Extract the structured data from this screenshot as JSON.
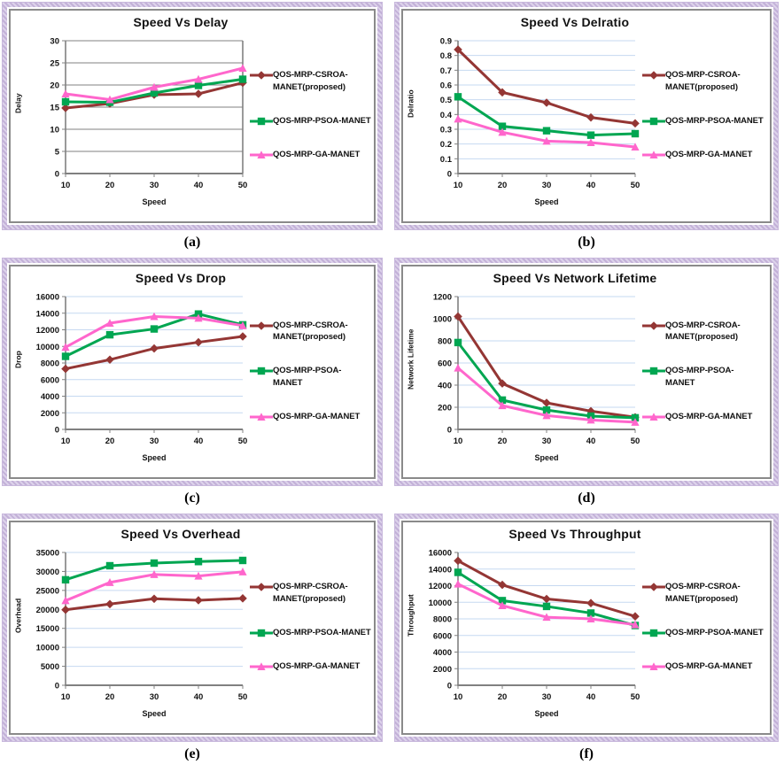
{
  "page": {
    "figure_labels": [
      "(a)",
      "(b)",
      "(c)",
      "(d)",
      "(e)",
      "(f)"
    ],
    "colors": {
      "panel_border_lavender": "#c8b4da",
      "panel_inner_border": "#8a8a8a",
      "axis": "#808080",
      "grid_light_blue": "#c6d9f1",
      "grid_gray": "#808080",
      "series_csroa": "#943634",
      "series_psoa": "#00a651",
      "series_ga": "#ff66cc",
      "text": "#111111"
    }
  },
  "chart_data": [
    {
      "type": "line",
      "title": "Speed Vs Delay",
      "xlabel": "Speed",
      "ylabel": "Delay",
      "x": [
        10,
        20,
        30,
        40,
        50
      ],
      "ylim": [
        0,
        30
      ],
      "ytick_step": 5,
      "grid_color": "#808080",
      "frame": true,
      "legend_position": "right",
      "series": [
        {
          "name": "QOS-MRP-CSROA-MANET(proposed)",
          "legend_lines": [
            "QOS-MRP-CSROA-",
            "MANET(proposed)"
          ],
          "marker": "diamond",
          "color": "#943634",
          "values": [
            14.8,
            15.8,
            17.8,
            18,
            20.5
          ]
        },
        {
          "name": "QOS-MRP-PSOA-MANET",
          "legend_lines": [
            "QOS-MRP-PSOA-MANET"
          ],
          "marker": "square",
          "color": "#00a651",
          "values": [
            16.2,
            16.1,
            18.2,
            19.9,
            21.3
          ]
        },
        {
          "name": "QOS-MRP-GA-MANET",
          "legend_lines": [
            "QOS-MRP-GA-MANET"
          ],
          "marker": "triangle",
          "color": "#ff66cc",
          "values": [
            18,
            16.7,
            19.5,
            21.3,
            23.8
          ]
        }
      ]
    },
    {
      "type": "line",
      "title": "Speed Vs Delratio",
      "xlabel": "Speed",
      "ylabel": "Delratio",
      "x": [
        10,
        20,
        30,
        40,
        50
      ],
      "ylim": [
        0,
        0.9
      ],
      "ytick_step": 0.1,
      "grid_color": "#c6d9f1",
      "frame": false,
      "legend_position": "right",
      "series": [
        {
          "name": "QOS-MRP-CSROA-MANET(proposed)",
          "legend_lines": [
            "QOS-MRP-CSROA-",
            "MANET(proposed)"
          ],
          "marker": "diamond",
          "color": "#943634",
          "values": [
            0.84,
            0.55,
            0.48,
            0.38,
            0.34
          ]
        },
        {
          "name": "QOS-MRP-PSOA-MANET",
          "legend_lines": [
            "QOS-MRP-PSOA-MANET"
          ],
          "marker": "square",
          "color": "#00a651",
          "values": [
            0.52,
            0.32,
            0.29,
            0.26,
            0.27
          ]
        },
        {
          "name": "QOS-MRP-GA-MANET",
          "legend_lines": [
            "QOS-MRP-GA-MANET"
          ],
          "marker": "triangle",
          "color": "#ff66cc",
          "values": [
            0.37,
            0.28,
            0.22,
            0.21,
            0.18
          ]
        }
      ]
    },
    {
      "type": "line",
      "title": "Speed Vs Drop",
      "xlabel": "Speed",
      "ylabel": "Drop",
      "x": [
        10,
        20,
        30,
        40,
        50
      ],
      "ylim": [
        0,
        16000
      ],
      "ytick_step": 2000,
      "grid_color": "#c6d9f1",
      "frame": false,
      "legend_position": "right",
      "series": [
        {
          "name": "QOS-MRP-CSROA-MANET(proposed)",
          "legend_lines": [
            "QOS-MRP-CSROA-",
            "MANET(proposed)"
          ],
          "marker": "diamond",
          "color": "#943634",
          "values": [
            7300,
            8400,
            9750,
            10500,
            11200
          ]
        },
        {
          "name": "QOS-MRP-PSOA-MANET",
          "legend_lines": [
            "QOS-MRP-PSOA-",
            "MANET"
          ],
          "marker": "square",
          "color": "#00a651",
          "values": [
            8800,
            11400,
            12100,
            13900,
            12600
          ]
        },
        {
          "name": "QOS-MRP-GA-MANET",
          "legend_lines": [
            "QOS-MRP-GA-MANET"
          ],
          "marker": "triangle",
          "color": "#ff66cc",
          "values": [
            9900,
            12800,
            13600,
            13400,
            12500
          ]
        }
      ]
    },
    {
      "type": "line",
      "title": "Speed Vs Network Lifetime",
      "xlabel": "Speed",
      "ylabel": "Network Lifetime",
      "x": [
        10,
        20,
        30,
        40,
        50
      ],
      "ylim": [
        0,
        1200
      ],
      "ytick_step": 200,
      "grid_color": "#c6d9f1",
      "frame": false,
      "legend_position": "right",
      "series": [
        {
          "name": "QOS-MRP-CSROA-MANET(proposed)",
          "legend_lines": [
            "QOS-MRP-CSROA-",
            "MANET(proposed)"
          ],
          "marker": "diamond",
          "color": "#943634",
          "values": [
            1020,
            415,
            240,
            165,
            110
          ]
        },
        {
          "name": "QOS-MRP-PSOA-MANET",
          "legend_lines": [
            "QOS-MRP-PSOA-",
            "MANET"
          ],
          "marker": "square",
          "color": "#00a651",
          "values": [
            785,
            265,
            175,
            120,
            105
          ]
        },
        {
          "name": "QOS-MRP-GA-MANET",
          "legend_lines": [
            "QOS-MRP-GA-MANET"
          ],
          "marker": "triangle",
          "color": "#ff66cc",
          "values": [
            555,
            215,
            125,
            85,
            65
          ]
        }
      ]
    },
    {
      "type": "line",
      "title": "Speed Vs Overhead",
      "xlabel": "Speed",
      "ylabel": "Overhead",
      "x": [
        10,
        20,
        30,
        40,
        50
      ],
      "ylim": [
        0,
        35000
      ],
      "ytick_step": 5000,
      "grid_color": "#c6d9f1",
      "frame": false,
      "legend_position": "right",
      "series": [
        {
          "name": "QOS-MRP-CSROA-MANET(proposed)",
          "legend_lines": [
            "QOS-MRP-CSROA-",
            "MANET(proposed)"
          ],
          "marker": "diamond",
          "color": "#943634",
          "values": [
            19900,
            21400,
            22800,
            22400,
            22900
          ]
        },
        {
          "name": "QOS-MRP-PSOA-MANET",
          "legend_lines": [
            "QOS-MRP-PSOA-MANET"
          ],
          "marker": "square",
          "color": "#00a651",
          "values": [
            27800,
            31500,
            32200,
            32600,
            32900
          ]
        },
        {
          "name": "QOS-MRP-GA-MANET",
          "legend_lines": [
            "QOS-MRP-GA-MANET"
          ],
          "marker": "triangle",
          "color": "#ff66cc",
          "values": [
            22300,
            27100,
            29200,
            28800,
            29900
          ]
        }
      ]
    },
    {
      "type": "line",
      "title": "Speed Vs Throughput",
      "xlabel": "Speed",
      "ylabel": "Throughput",
      "x": [
        10,
        20,
        30,
        40,
        50
      ],
      "ylim": [
        0,
        16000
      ],
      "ytick_step": 2000,
      "grid_color": "#c6d9f1",
      "frame": false,
      "legend_position": "right",
      "series": [
        {
          "name": "QOS-MRP-CSROA-MANET(proposed)",
          "legend_lines": [
            "QOS-MRP-CSROA-",
            "MANET(proposed)"
          ],
          "marker": "diamond",
          "color": "#943634",
          "values": [
            15000,
            12100,
            10400,
            9900,
            8300
          ]
        },
        {
          "name": "QOS-MRP-PSOA-MANET",
          "legend_lines": [
            "QOS-MRP-PSOA-MANET"
          ],
          "marker": "square",
          "color": "#00a651",
          "values": [
            13600,
            10200,
            9500,
            8700,
            7200
          ]
        },
        {
          "name": "QOS-MRP-GA-MANET",
          "legend_lines": [
            "QOS-MRP-GA-MANET"
          ],
          "marker": "triangle",
          "color": "#ff66cc",
          "values": [
            12200,
            9600,
            8200,
            8000,
            7300
          ]
        }
      ]
    }
  ]
}
